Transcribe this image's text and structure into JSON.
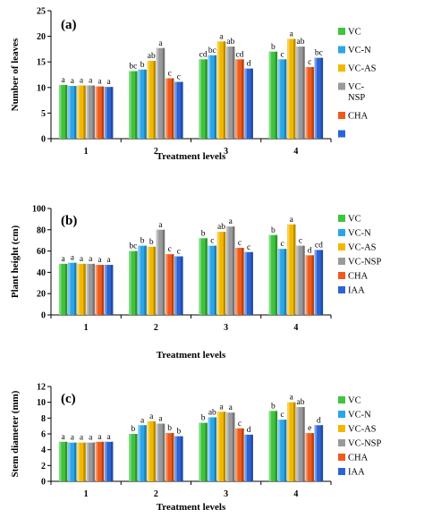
{
  "chart_data": [
    {
      "panel": "(a)",
      "type": "bar",
      "categories": [
        "1",
        "2",
        "3",
        "4"
      ],
      "xlabel": "Treatment levels",
      "ylabel": "Number of leaves",
      "ylim": [
        0,
        25
      ],
      "yticks": [
        0,
        5,
        10,
        15,
        20,
        25
      ],
      "legend_position": "right",
      "series": [
        {
          "name": "VC",
          "color": "#3ec43e",
          "values": [
            10.5,
            13.2,
            15.5,
            17.0
          ],
          "letters": [
            "a",
            "bc",
            "cd",
            "b"
          ]
        },
        {
          "name": "VC-N",
          "color": "#2aa6e8",
          "values": [
            10.3,
            13.5,
            16.3,
            15.5
          ],
          "letters": [
            "a",
            "b",
            "bc",
            "c"
          ]
        },
        {
          "name": "VC-AS",
          "color": "#f2b800",
          "values": [
            10.4,
            15.2,
            19.0,
            19.5
          ],
          "letters": [
            "a",
            "ab",
            "a",
            "a"
          ]
        },
        {
          "name": "VC-\nNSP",
          "color": "#9a9a9a",
          "values": [
            10.4,
            17.7,
            18.0,
            18.0
          ],
          "letters": [
            "a",
            "a",
            "ab",
            "ab"
          ]
        },
        {
          "name": "CHA",
          "color": "#f05a1a",
          "values": [
            10.2,
            11.8,
            15.5,
            14.0
          ],
          "letters": [
            "a",
            "c",
            "cd",
            "c"
          ]
        },
        {
          "name": "",
          "color": "#2c64d6",
          "values": [
            10.1,
            11.1,
            13.7,
            15.8
          ],
          "letters": [
            "a",
            "c",
            "d",
            "bc"
          ]
        }
      ]
    },
    {
      "panel": "(b)",
      "type": "bar",
      "categories": [
        "1",
        "2",
        "3",
        "4"
      ],
      "xlabel": "Treatment levels",
      "ylabel": "Plant height (cm)",
      "ylim": [
        0,
        100
      ],
      "yticks": [
        0,
        20,
        40,
        60,
        80,
        100
      ],
      "legend_position": "right",
      "series": [
        {
          "name": "VC",
          "color": "#3ec43e",
          "values": [
            48,
            60,
            72,
            75
          ],
          "letters": [
            "a",
            "bc",
            "b",
            "b"
          ]
        },
        {
          "name": "VC-N",
          "color": "#2aa6e8",
          "values": [
            49,
            65,
            65,
            62
          ],
          "letters": [
            "a",
            "b",
            "c",
            "c"
          ]
        },
        {
          "name": "VC-AS",
          "color": "#f2b800",
          "values": [
            48,
            64,
            78,
            85
          ],
          "letters": [
            "a",
            "b",
            "ab",
            "a"
          ]
        },
        {
          "name": "VC-NSP",
          "color": "#9a9a9a",
          "values": [
            48,
            80,
            83,
            65
          ],
          "letters": [
            "a",
            "a",
            "a",
            "c"
          ]
        },
        {
          "name": "CHA",
          "color": "#f05a1a",
          "values": [
            47,
            57,
            63,
            56
          ],
          "letters": [
            "a",
            "c",
            "c",
            "d"
          ]
        },
        {
          "name": "IAA",
          "color": "#2c64d6",
          "values": [
            47,
            55,
            59,
            61
          ],
          "letters": [
            "a",
            "c",
            "c",
            "cd"
          ]
        }
      ]
    },
    {
      "panel": "(c)",
      "type": "bar",
      "categories": [
        "1",
        "2",
        "3",
        "4"
      ],
      "xlabel": "Treatment levels",
      "ylabel": "Stem diameter (mm)",
      "ylim": [
        0,
        12
      ],
      "yticks": [
        0,
        2,
        4,
        6,
        8,
        10,
        12
      ],
      "legend_position": "right",
      "series": [
        {
          "name": "VC",
          "color": "#3ec43e",
          "values": [
            5.0,
            6.0,
            7.4,
            8.9
          ],
          "letters": [
            "a",
            "b",
            "b",
            "b"
          ]
        },
        {
          "name": "VC-N",
          "color": "#2aa6e8",
          "values": [
            4.9,
            7.1,
            8.1,
            7.8
          ],
          "letters": [
            "a",
            "a",
            "ab",
            "c"
          ]
        },
        {
          "name": "VC-AS",
          "color": "#f2b800",
          "values": [
            4.9,
            7.6,
            8.8,
            10.0
          ],
          "letters": [
            "a",
            "a",
            "a",
            "a"
          ]
        },
        {
          "name": "VC-NSP",
          "color": "#9a9a9a",
          "values": [
            4.9,
            7.3,
            8.7,
            9.4
          ],
          "letters": [
            "a",
            "a",
            "a",
            "ab"
          ]
        },
        {
          "name": "CHA",
          "color": "#f05a1a",
          "values": [
            5.0,
            6.1,
            6.7,
            6.1
          ],
          "letters": [
            "a",
            "b",
            "c",
            "e"
          ]
        },
        {
          "name": "IAA",
          "color": "#2c64d6",
          "values": [
            5.0,
            5.7,
            5.9,
            7.1
          ],
          "letters": [
            "a",
            "b",
            "d",
            "d"
          ]
        }
      ]
    }
  ]
}
